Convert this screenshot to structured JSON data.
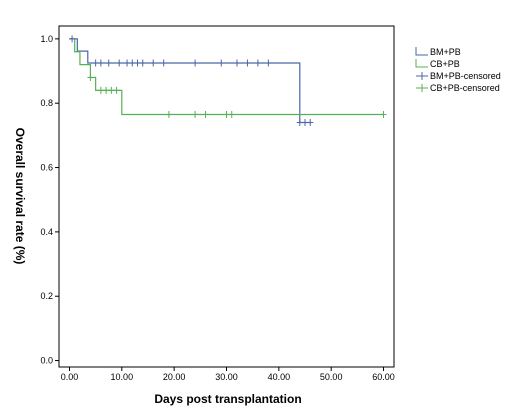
{
  "chart_data": {
    "type": "line",
    "step": true,
    "xlabel": "Days post transplantation",
    "ylabel": "Overall survival rate (%)",
    "xlim": [
      -2,
      62
    ],
    "ylim": [
      -0.02,
      1.04
    ],
    "xticks": [
      "0.00",
      "10.00",
      "20.00",
      "30.00",
      "40.00",
      "50.00",
      "60.00"
    ],
    "xtick_values": [
      0,
      10,
      20,
      30,
      40,
      50,
      60
    ],
    "yticks": [
      "0.0",
      "0.2",
      "0.4",
      "0.6",
      "0.8",
      "1.0"
    ],
    "ytick_values": [
      0,
      0.2,
      0.4,
      0.6,
      0.8,
      1.0
    ],
    "grid": false,
    "legend_position": "right",
    "series": [
      {
        "name": "BM+PB",
        "color": "#4a66a8",
        "x": [
          0,
          1.5,
          1.5,
          3.5,
          3.5,
          44,
          44,
          46
        ],
        "y": [
          1.0,
          1.0,
          0.962,
          0.962,
          0.925,
          0.925,
          0.74,
          0.74
        ]
      },
      {
        "name": "CB+PB",
        "color": "#55b155",
        "x": [
          0,
          1,
          1,
          2,
          2,
          4,
          4,
          5,
          5,
          10,
          10,
          60
        ],
        "y": [
          1.0,
          1.0,
          0.96,
          0.96,
          0.92,
          0.92,
          0.88,
          0.88,
          0.84,
          0.84,
          0.765,
          0.765
        ]
      }
    ],
    "censored": [
      {
        "name": "BM+PB-censored",
        "color": "#4a66a8",
        "x": [
          0.5,
          5,
          6,
          7.5,
          9.5,
          11,
          12,
          13,
          14,
          16,
          18,
          24,
          29,
          32,
          34,
          36,
          38,
          44,
          45,
          46
        ],
        "y": [
          1.0,
          0.925,
          0.925,
          0.925,
          0.925,
          0.925,
          0.925,
          0.925,
          0.925,
          0.925,
          0.925,
          0.925,
          0.925,
          0.925,
          0.925,
          0.925,
          0.925,
          0.74,
          0.74,
          0.74
        ]
      },
      {
        "name": "CB+PB-censored",
        "color": "#55b155",
        "x": [
          4,
          6,
          7,
          8,
          9,
          19,
          24,
          26,
          30,
          31,
          60
        ],
        "y": [
          0.88,
          0.84,
          0.84,
          0.84,
          0.84,
          0.765,
          0.765,
          0.765,
          0.765,
          0.765,
          0.765
        ]
      }
    ]
  }
}
